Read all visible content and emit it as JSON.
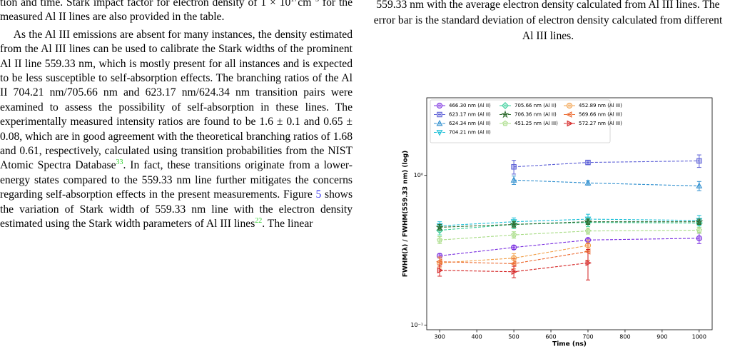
{
  "left_column": {
    "paragraphs": [
      [
        {
          "text": "tion and time. Stark impact factor for electron density of 1 × 10"
        },
        {
          "sup": "17"
        },
        {
          "text": "cm"
        },
        {
          "sup": "−3"
        },
        {
          "text": " for the measured Al II lines are also provided in the table."
        }
      ],
      [
        {
          "text": "As the Al III emissions are absent for many instances, the density estimated from the Al III lines can be used to calibrate the Stark widths of the prominent Al II line 559.33 nm, which is mostly present for all instances and is expected to be less susceptible to self-absorption effects. The branching ratios of the Al II 704.21 nm/705.66 nm and 623.17 nm/624.34 nm transition pairs were examined to assess the possibility of self-absorption in these lines. The experimentally measured intensity ratios are found to be 1.6 ± 0.1 and 0.65 ± 0.08, which are in good agreement with the theoretical branching ratios of 1.68 and 0.61, respectively, calculated using transition probabilities from the NIST Atomic Spectra Database"
        },
        {
          "ref": "33"
        },
        {
          "text": ". In fact, these transitions originate from a lower-energy states compared to the 559.33 nm line further mitigates the concerns regarding self-absorption effects in the present measurements. Figure "
        },
        {
          "link": "5"
        },
        {
          "text": " shows the variation of Stark width of 559.33 nm line with the electron density estimated using the Stark width parameters of Al III lines"
        },
        {
          "ref": "22"
        },
        {
          "text": ". The linear"
        }
      ]
    ]
  },
  "right_column": {
    "caption": "559.33 nm with the average electron density calculated from Al III lines. The error bar is the standard deviation of electron density calculated from different Al III lines."
  },
  "chart_data": {
    "type": "line",
    "x": [
      300,
      500,
      700,
      1000
    ],
    "x_label": "Time (ns)",
    "y_label": "FWHM(λ) / FWHM(559.33 nm) (log)",
    "xlim": [
      265,
      1035
    ],
    "ylim": [
      0.093,
      3.3
    ],
    "log_y": true,
    "xticks": [
      300,
      400,
      500,
      600,
      700,
      800,
      900,
      1000
    ],
    "yticks": [
      {
        "value": 0.1,
        "label": "10⁻¹"
      },
      {
        "value": 1,
        "label": "10⁰"
      }
    ],
    "legend": "upper left",
    "series": [
      {
        "name": "466.30 nm (Al II)",
        "color": "#7a2fe0",
        "marker": "o",
        "values": [
          0.29,
          0.33,
          0.37,
          0.38
        ],
        "errors": [
          0.01,
          0.01,
          0.01,
          0.03
        ]
      },
      {
        "name": "623.17 nm (Al II)",
        "color": "#5b5fd6",
        "marker": "s",
        "values": [
          null,
          1.14,
          1.22,
          1.25
        ],
        "errors": [
          null,
          0.12,
          0.04,
          0.12
        ]
      },
      {
        "name": "624.34 nm (Al II)",
        "color": "#2f8fcf",
        "marker": "^",
        "values": [
          null,
          0.93,
          0.89,
          0.85
        ],
        "errors": [
          null,
          0.06,
          0.03,
          0.06
        ]
      },
      {
        "name": "704.21 nm (Al II)",
        "color": "#1fc0d8",
        "marker": "v",
        "values": [
          0.46,
          0.49,
          0.51,
          0.5
        ],
        "errors": [
          0.03,
          0.03,
          0.04,
          0.04
        ]
      },
      {
        "name": "705.66 nm (Al II)",
        "color": "#38cf9a",
        "marker": "D",
        "values": [
          0.43,
          0.47,
          0.485,
          0.48
        ],
        "errors": [
          0.03,
          0.03,
          0.03,
          0.03
        ]
      },
      {
        "name": "706.36 nm (Al II)",
        "color": "#2e6b2e",
        "marker": "*",
        "values": [
          0.45,
          0.47,
          0.49,
          0.49
        ],
        "errors": [
          0.02,
          0.02,
          0.02,
          0.02
        ]
      },
      {
        "name": "451.25 nm (Al III)",
        "color": "#a8dc86",
        "marker": "p",
        "values": [
          0.37,
          0.4,
          0.425,
          0.43
        ],
        "errors": [
          0.02,
          0.02,
          0.02,
          0.02
        ]
      },
      {
        "name": "452.89 nm (Al III)",
        "color": "#f2a04a",
        "marker": "o",
        "values": [
          0.26,
          0.28,
          0.34,
          null
        ],
        "errors": [
          0.02,
          0.02,
          0.03,
          null
        ]
      },
      {
        "name": "569.66 nm (Al III)",
        "color": "#ec6a30",
        "marker": "<",
        "values": [
          0.265,
          0.257,
          0.31,
          null
        ],
        "errors": [
          0.02,
          0.02,
          0.04,
          null
        ]
      },
      {
        "name": "572.27 nm (Al III)",
        "color": "#d42020",
        "marker": ">",
        "values": [
          0.232,
          0.227,
          0.26,
          null
        ],
        "errors": [
          0.02,
          0.02,
          0.06,
          null
        ]
      }
    ]
  }
}
